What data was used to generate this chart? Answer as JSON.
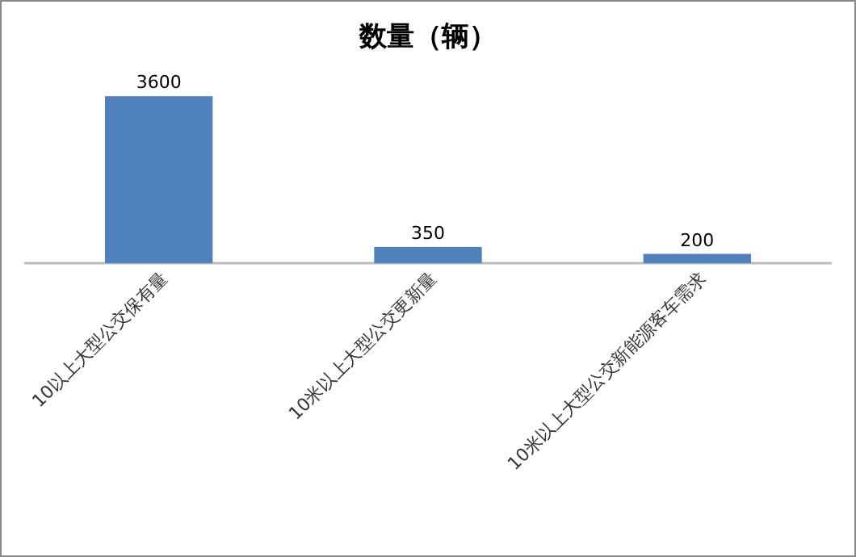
{
  "chart_data": {
    "type": "bar",
    "title": "数量（辆）",
    "categories": [
      "10以上大型公交保有量",
      "10米以上大型公交更新量",
      "10米以上大型公交新能源客车需求"
    ],
    "values": [
      3600,
      350,
      200
    ],
    "color": "#4f81bd",
    "data_labels": true
  }
}
